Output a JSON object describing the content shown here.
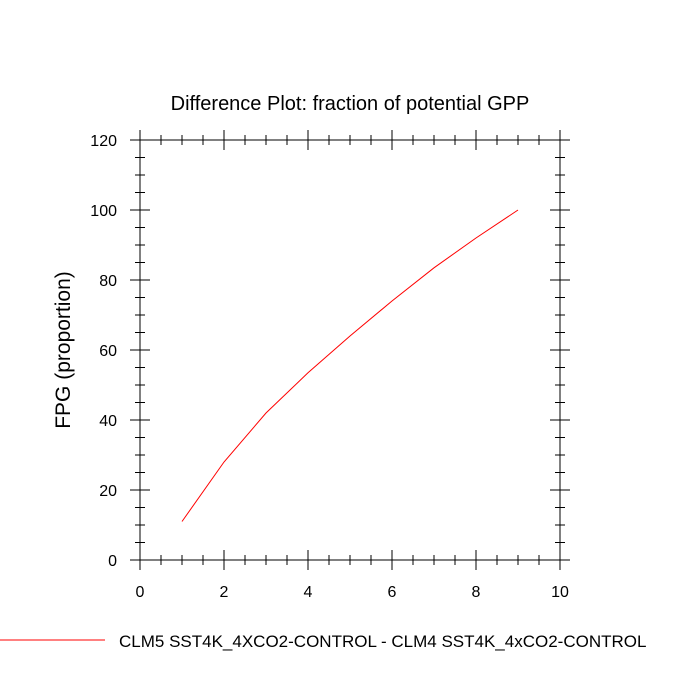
{
  "chart_data": {
    "type": "line",
    "title": "Difference Plot: fraction of potential GPP",
    "xlabel": "",
    "ylabel": "FPG  (proportion)",
    "xlim": [
      0,
      10
    ],
    "ylim": [
      0,
      120
    ],
    "x_ticks": [
      0,
      2,
      4,
      6,
      8,
      10
    ],
    "y_ticks": [
      0,
      20,
      40,
      60,
      80,
      100,
      120
    ],
    "grid": false,
    "legend_position": "bottom",
    "series": [
      {
        "name": "CLM5 SST4K_4XCO2-CONTROL - CLM4 SST4K_4xCO2-CONTROL",
        "color": "#ff0000",
        "x": [
          1,
          2,
          3,
          4,
          5,
          6,
          7,
          8,
          9
        ],
        "y": [
          11,
          28,
          42,
          53.5,
          64,
          74,
          83.5,
          92,
          100
        ]
      }
    ]
  }
}
